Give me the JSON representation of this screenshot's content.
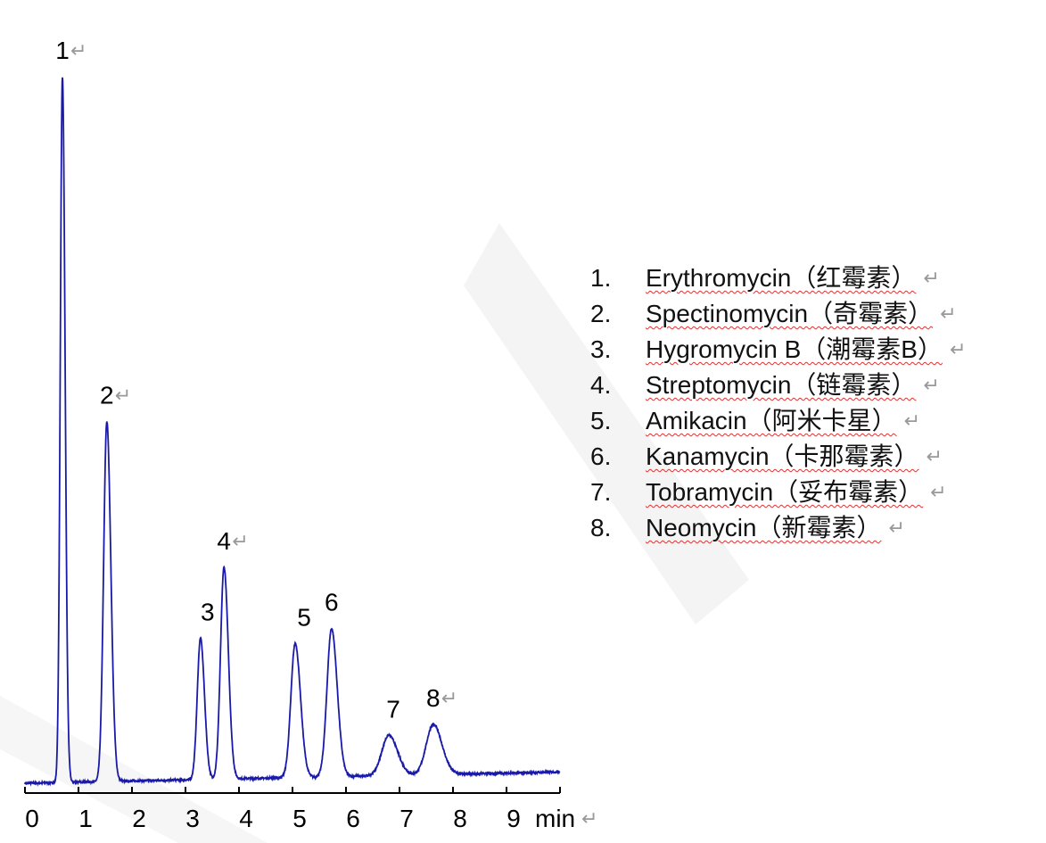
{
  "chart_data": {
    "type": "line",
    "title": "",
    "xlabel": "min",
    "ylabel": "",
    "xlim": [
      0,
      10
    ],
    "x_ticks": [
      0,
      1,
      2,
      3,
      4,
      5,
      6,
      7,
      8,
      9
    ],
    "x_tick_labels": [
      "0",
      "1",
      "2",
      "3",
      "4",
      "5",
      "6",
      "7",
      "8",
      "9"
    ],
    "grid": false,
    "line_color": "#1a1aa8",
    "y_units": "relative intensity (peak 1 = 100)",
    "peaks": [
      {
        "label": "1",
        "retention_time": 0.7,
        "height": 100,
        "width": 0.04
      },
      {
        "label": "2",
        "retention_time": 1.53,
        "height": 51,
        "width": 0.06
      },
      {
        "label": "3",
        "retention_time": 3.28,
        "height": 20,
        "width": 0.06
      },
      {
        "label": "4",
        "retention_time": 3.72,
        "height": 30,
        "width": 0.065
      },
      {
        "label": "5",
        "retention_time": 5.05,
        "height": 19,
        "width": 0.08
      },
      {
        "label": "6",
        "retention_time": 5.73,
        "height": 21,
        "width": 0.085
      },
      {
        "label": "7",
        "retention_time": 6.8,
        "height": 5.7,
        "width": 0.13
      },
      {
        "label": "8",
        "retention_time": 7.63,
        "height": 7.1,
        "width": 0.13
      }
    ],
    "legend": [
      {
        "num": "1.",
        "name": "Erythromycin（红霉素）"
      },
      {
        "num": "2.",
        "name": "Spectinomycin（奇霉素）"
      },
      {
        "num": "3.",
        "name": "Hygromycin B（潮霉素B）"
      },
      {
        "num": "4.",
        "name": "Streptomycin（链霉素）"
      },
      {
        "num": "5.",
        "name": "Amikacin（阿米卡星）"
      },
      {
        "num": "6.",
        "name": "Kanamycin（卡那霉素）"
      },
      {
        "num": "7.",
        "name": "Tobramycin（妥布霉素）"
      },
      {
        "num": "8.",
        "name": "Neomycin（新霉素）"
      }
    ],
    "legend_placement": "right",
    "return_mark": "↵"
  }
}
